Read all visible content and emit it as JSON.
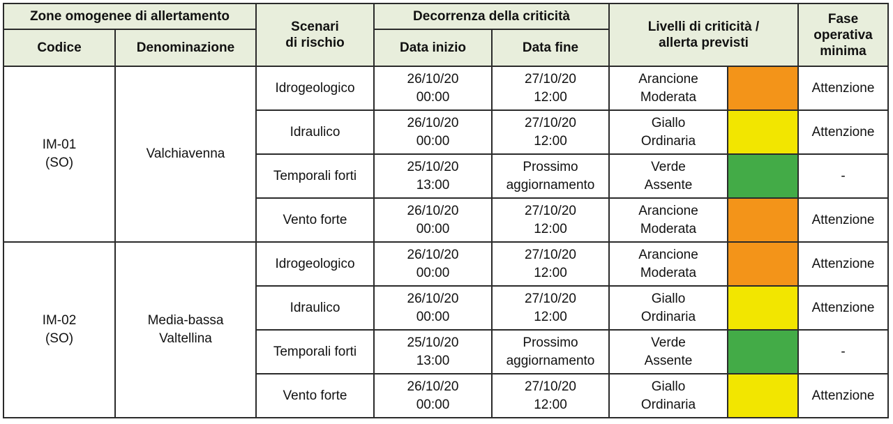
{
  "header": {
    "zone": "Zone omogenee di allertamento",
    "codice": "Codice",
    "denominazione": "Denominazione",
    "scenari": "Scenari\ndi rischio",
    "decorrenza": "Decorrenza della criticità",
    "data_inizio": "Data inizio",
    "data_fine": "Data fine",
    "livelli": "Livelli di criticità /\nallerta previsti",
    "fase": "Fase\noperativa\nminima"
  },
  "colors": {
    "arancione": "#f39419",
    "giallo": "#f2e600",
    "verde": "#43ab47",
    "header_bg": "#e8eedc"
  },
  "zones": [
    {
      "codice": "IM-01\n(SO)",
      "denominazione": "Valchiavenna",
      "rows": [
        {
          "scenario": "Idrogeologico",
          "inizio": "26/10/20\n00:00",
          "fine": "27/10/20\n12:00",
          "livello": "Arancione\nModerata",
          "color": "#f39419",
          "fase": "Attenzione"
        },
        {
          "scenario": "Idraulico",
          "inizio": "26/10/20\n00:00",
          "fine": "27/10/20\n12:00",
          "livello": "Giallo\nOrdinaria",
          "color": "#f2e600",
          "fase": "Attenzione"
        },
        {
          "scenario": "Temporali forti",
          "inizio": "25/10/20\n13:00",
          "fine": "Prossimo\naggiornamento",
          "livello": "Verde\nAssente",
          "color": "#43ab47",
          "fase": "-"
        },
        {
          "scenario": "Vento forte",
          "inizio": "26/10/20\n00:00",
          "fine": "27/10/20\n12:00",
          "livello": "Arancione\nModerata",
          "color": "#f39419",
          "fase": "Attenzione"
        }
      ]
    },
    {
      "codice": "IM-02\n(SO)",
      "denominazione": "Media-bassa\nValtellina",
      "rows": [
        {
          "scenario": "Idrogeologico",
          "inizio": "26/10/20\n00:00",
          "fine": "27/10/20\n12:00",
          "livello": "Arancione\nModerata",
          "color": "#f39419",
          "fase": "Attenzione"
        },
        {
          "scenario": "Idraulico",
          "inizio": "26/10/20\n00:00",
          "fine": "27/10/20\n12:00",
          "livello": "Giallo\nOrdinaria",
          "color": "#f2e600",
          "fase": "Attenzione"
        },
        {
          "scenario": "Temporali forti",
          "inizio": "25/10/20\n13:00",
          "fine": "Prossimo\naggiornamento",
          "livello": "Verde\nAssente",
          "color": "#43ab47",
          "fase": "-"
        },
        {
          "scenario": "Vento forte",
          "inizio": "26/10/20\n00:00",
          "fine": "27/10/20\n12:00",
          "livello": "Giallo\nOrdinaria",
          "color": "#f2e600",
          "fase": "Attenzione"
        }
      ]
    }
  ]
}
